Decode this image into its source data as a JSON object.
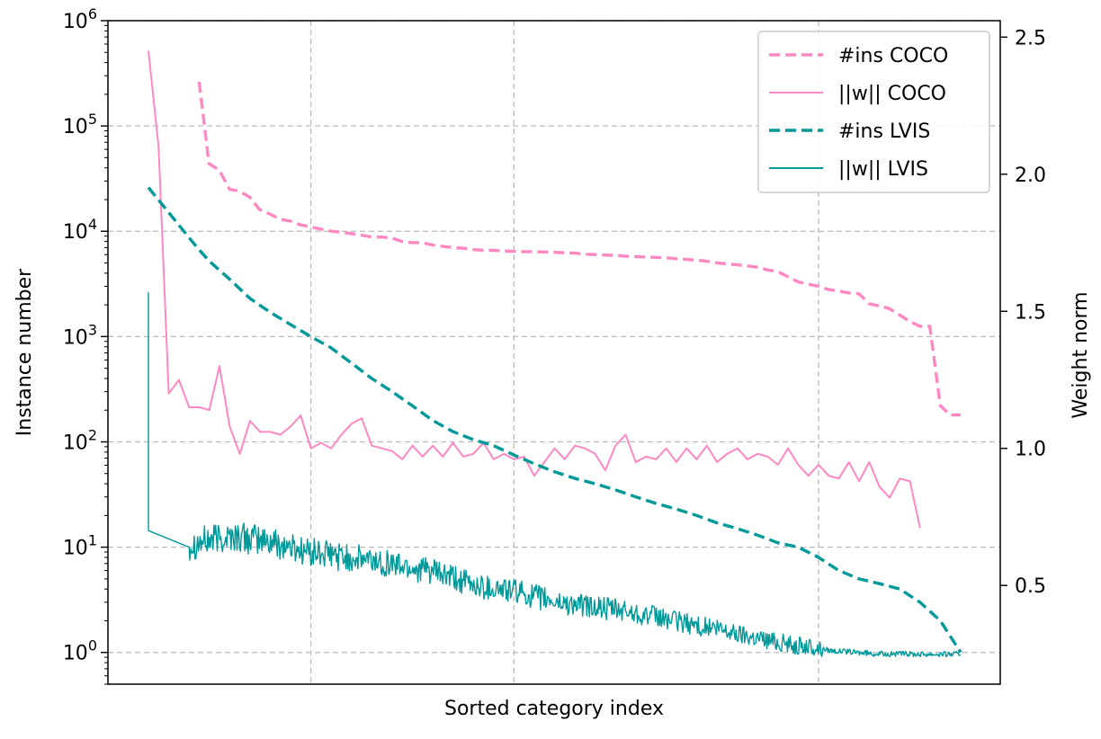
{
  "chart_data": {
    "type": "line",
    "xlabel": "Sorted category index",
    "ylabel_left": "Instance number",
    "ylabel_right": "Weight norm",
    "left_axis": {
      "scale": "log",
      "ylim": [
        0.5,
        1000000
      ],
      "ticks": [
        1,
        10,
        100,
        1000,
        10000,
        100000,
        1000000
      ],
      "tick_labels": [
        {
          "b": "10",
          "e": "0"
        },
        {
          "b": "10",
          "e": "1"
        },
        {
          "b": "10",
          "e": "2"
        },
        {
          "b": "10",
          "e": "3"
        },
        {
          "b": "10",
          "e": "4"
        },
        {
          "b": "10",
          "e": "5"
        },
        {
          "b": "10",
          "e": "6"
        }
      ]
    },
    "right_axis": {
      "scale": "linear",
      "ylim": [
        0.14,
        2.56
      ],
      "ticks": [
        0.5,
        1.0,
        1.5,
        2.0,
        2.5
      ],
      "tick_labels": [
        "0.5",
        "1.0",
        "1.5",
        "2.0",
        "2.5"
      ]
    },
    "xlim": [
      0,
      1
    ],
    "x_grid": [
      0.2,
      0.45,
      0.825
    ],
    "grid": true,
    "legend_position": "top-right",
    "series": [
      {
        "name": "#ins COCO",
        "axis": "left",
        "style": "dashed",
        "color": "#ff88c2",
        "x": [
          0.0625,
          0.0745,
          0.087,
          0.1,
          0.112,
          0.125,
          0.137,
          0.15,
          0.162,
          0.175,
          0.187,
          0.2,
          0.212,
          0.225,
          0.237,
          0.25,
          0.262,
          0.275,
          0.287,
          0.3,
          0.312,
          0.325,
          0.337,
          0.35,
          0.362,
          0.375,
          0.387,
          0.4,
          0.412,
          0.425,
          0.437,
          0.45,
          0.462,
          0.475,
          0.487,
          0.5,
          0.512,
          0.525,
          0.537,
          0.55,
          0.562,
          0.575,
          0.587,
          0.6,
          0.612,
          0.625,
          0.637,
          0.65,
          0.662,
          0.675,
          0.687,
          0.7,
          0.712,
          0.725,
          0.737,
          0.75,
          0.762,
          0.775,
          0.787,
          0.8,
          0.812,
          0.825,
          0.837,
          0.85,
          0.862,
          0.875,
          0.887,
          0.9,
          0.912,
          0.925,
          0.937,
          0.95,
          0.962,
          0.975,
          0.987,
          1.0
        ],
        "values": [
          262000,
          44000,
          38000,
          25000,
          24000,
          21000,
          16000,
          14500,
          13000,
          12500,
          11500,
          11000,
          10500,
          10000,
          9800,
          9500,
          9200,
          8800,
          8800,
          8600,
          8000,
          7800,
          7800,
          7400,
          7200,
          7000,
          6900,
          6700,
          6600,
          6600,
          6500,
          6450,
          6400,
          6400,
          6350,
          6300,
          6250,
          6200,
          6050,
          6000,
          5950,
          5900,
          5800,
          5750,
          5700,
          5650,
          5600,
          5500,
          5400,
          5300,
          5200,
          5000,
          4900,
          4800,
          4700,
          4550,
          4300,
          4150,
          3700,
          3300,
          3150,
          3000,
          2800,
          2700,
          2600,
          2550,
          2050,
          1950,
          1850,
          1600,
          1400,
          1250,
          1250,
          220,
          180,
          180
        ]
      },
      {
        "name": "||w|| COCO",
        "axis": "right",
        "style": "solid",
        "color": "#ff88c2",
        "x": [
          0.05,
          0.0625,
          0.075,
          0.0875,
          0.1,
          0.1125,
          0.125,
          0.1375,
          0.15,
          0.1625,
          0.175,
          0.1875,
          0.2,
          0.2125,
          0.225,
          0.2375,
          0.25,
          0.2625,
          0.275,
          0.2875,
          0.3,
          0.3125,
          0.325,
          0.3375,
          0.35,
          0.3625,
          0.375,
          0.3875,
          0.4,
          0.4125,
          0.425,
          0.4375,
          0.45,
          0.4625,
          0.475,
          0.4875,
          0.5,
          0.5125,
          0.525,
          0.5375,
          0.55,
          0.5625,
          0.575,
          0.5875,
          0.6,
          0.6125,
          0.625,
          0.6375,
          0.65,
          0.6625,
          0.675,
          0.6875,
          0.7,
          0.7125,
          0.725,
          0.7375,
          0.75,
          0.7625,
          0.775,
          0.7875,
          0.8,
          0.8125,
          0.825,
          0.8375,
          0.85,
          0.8625,
          0.875,
          0.8875,
          0.9,
          0.9125,
          0.925,
          0.9375,
          0.95,
          0.9625,
          0.975,
          0.9875,
          1.0
        ],
        "values": [
          2.45,
          2.1,
          1.2,
          1.25,
          1.15,
          1.15,
          1.14,
          1.3,
          1.08,
          0.98,
          1.1,
          1.06,
          1.06,
          1.05,
          1.08,
          1.12,
          1.0,
          1.02,
          1.0,
          1.05,
          1.09,
          1.11,
          1.01,
          1.0,
          0.99,
          0.96,
          1.01,
          0.97,
          1.01,
          0.97,
          1.02,
          0.97,
          0.98,
          1.02,
          0.96,
          0.98,
          0.96,
          0.97,
          0.9,
          0.95,
          1.0,
          0.96,
          1.01,
          1.0,
          0.98,
          0.92,
          1.01,
          1.05,
          0.95,
          0.97,
          0.96,
          1.0,
          0.95,
          1.0,
          0.96,
          1.01,
          0.95,
          0.98,
          1.0,
          0.96,
          0.98,
          0.97,
          0.94,
          1.0,
          0.94,
          0.9,
          0.94,
          0.9,
          0.89,
          0.95,
          0.88,
          0.95,
          0.86,
          0.82,
          0.89,
          0.88,
          0.71
        ]
      },
      {
        "name": "#ins LVIS",
        "axis": "left",
        "style": "dashed",
        "color": "#00999a",
        "x": [
          0.05,
          0.06,
          0.075,
          0.1,
          0.125,
          0.15,
          0.175,
          0.2,
          0.225,
          0.25,
          0.275,
          0.3,
          0.325,
          0.35,
          0.375,
          0.4,
          0.425,
          0.45,
          0.475,
          0.5,
          0.525,
          0.55,
          0.575,
          0.6,
          0.625,
          0.65,
          0.675,
          0.7,
          0.725,
          0.75,
          0.775,
          0.8,
          0.825,
          0.85,
          0.875,
          0.9,
          0.925,
          0.95,
          0.975,
          1.0
        ],
        "values": [
          26000,
          7000,
          5200,
          3500,
          2300,
          1700,
          1300,
          1000,
          780,
          560,
          400,
          300,
          220,
          160,
          125,
          105,
          92,
          75,
          62,
          52,
          45,
          40,
          35,
          30,
          26,
          23,
          20,
          17,
          15,
          13,
          11,
          10,
          8,
          6,
          5,
          4.5,
          4,
          3,
          2,
          1
        ]
      },
      {
        "name": "||w|| LVIS",
        "axis": "right",
        "style": "solid",
        "color": "#00999a",
        "x": [
          0.05,
          0.1,
          0.15,
          0.2,
          0.25,
          0.3,
          0.35,
          0.4,
          0.45,
          0.5,
          0.55,
          0.6,
          0.65,
          0.7,
          0.75,
          0.8,
          0.825,
          0.85,
          0.9,
          0.95,
          1.0
        ],
        "values": [
          0.65,
          0.68,
          0.66,
          0.62,
          0.6,
          0.58,
          0.55,
          0.5,
          0.48,
          0.44,
          0.42,
          0.4,
          0.37,
          0.34,
          0.31,
          0.28,
          0.27,
          0.26,
          0.25,
          0.25,
          0.25
        ]
      }
    ]
  }
}
